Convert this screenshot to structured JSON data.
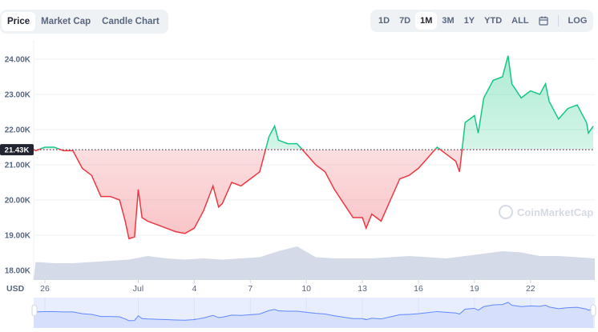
{
  "chart_tabs": [
    {
      "label": "Price",
      "active": true
    },
    {
      "label": "Market Cap",
      "active": false
    },
    {
      "label": "Candle Chart",
      "active": false
    }
  ],
  "ranges": [
    {
      "label": "1D"
    },
    {
      "label": "7D"
    },
    {
      "label": "1M",
      "active": true
    },
    {
      "label": "3M"
    },
    {
      "label": "1Y"
    },
    {
      "label": "YTD"
    },
    {
      "label": "ALL"
    }
  ],
  "calendar_icon": "calendar-icon",
  "log_label": "LOG",
  "currency_label": "USD",
  "watermark": "CoinMarketCap",
  "colors": {
    "up": "#16c784",
    "down": "#ea3943",
    "navigator_line": "#6188ff",
    "volume": "#cfd6e4"
  },
  "chart_data": {
    "type": "line",
    "baseline": {
      "value": 21.43,
      "label": "21.43K"
    },
    "ylim": [
      17.75,
      24.6
    ],
    "y_ticks": [
      {
        "v": 18,
        "label": "18.00K"
      },
      {
        "v": 19,
        "label": "19.00K"
      },
      {
        "v": 20,
        "label": "20.00K"
      },
      {
        "v": 21,
        "label": "21.00K"
      },
      {
        "v": 22,
        "label": "22.00K"
      },
      {
        "v": 23,
        "label": "23.00K"
      },
      {
        "v": 24,
        "label": "24.00K"
      }
    ],
    "x_ticks": [
      {
        "d": 0,
        "label": "26"
      },
      {
        "d": 5,
        "label": "Jul"
      },
      {
        "d": 8,
        "label": "4"
      },
      {
        "d": 11,
        "label": "7"
      },
      {
        "d": 14,
        "label": "10"
      },
      {
        "d": 17,
        "label": "13"
      },
      {
        "d": 20,
        "label": "16"
      },
      {
        "d": 23,
        "label": "19"
      },
      {
        "d": 26,
        "label": "22"
      }
    ],
    "x_unit": "days from Jun 26",
    "price_k": [
      [
        -0.6,
        21.43
      ],
      [
        -0.5,
        21.4
      ],
      [
        0,
        21.5
      ],
      [
        0.5,
        21.5
      ],
      [
        1,
        21.4
      ],
      [
        1.5,
        21.4
      ],
      [
        2,
        20.9
      ],
      [
        2.5,
        20.7
      ],
      [
        3,
        20.1
      ],
      [
        3.5,
        20.1
      ],
      [
        4,
        20.0
      ],
      [
        4.3,
        19.4
      ],
      [
        4.5,
        18.9
      ],
      [
        4.8,
        18.95
      ],
      [
        5,
        20.3
      ],
      [
        5.2,
        19.5
      ],
      [
        5.5,
        19.4
      ],
      [
        6,
        19.3
      ],
      [
        6.5,
        19.2
      ],
      [
        7,
        19.1
      ],
      [
        7.5,
        19.05
      ],
      [
        8,
        19.2
      ],
      [
        8.5,
        19.7
      ],
      [
        9,
        20.4
      ],
      [
        9.3,
        19.8
      ],
      [
        9.5,
        19.9
      ],
      [
        10,
        20.5
      ],
      [
        10.5,
        20.4
      ],
      [
        11,
        20.6
      ],
      [
        11.5,
        20.8
      ],
      [
        11.9,
        21.6
      ],
      [
        12,
        21.8
      ],
      [
        12.3,
        22.1
      ],
      [
        12.5,
        21.7
      ],
      [
        13,
        21.6
      ],
      [
        13.5,
        21.6
      ],
      [
        14,
        21.3
      ],
      [
        14.5,
        21.0
      ],
      [
        15,
        20.8
      ],
      [
        15.5,
        20.3
      ],
      [
        16,
        19.9
      ],
      [
        16.5,
        19.5
      ],
      [
        17,
        19.5
      ],
      [
        17.2,
        19.2
      ],
      [
        17.5,
        19.6
      ],
      [
        18,
        19.4
      ],
      [
        18.5,
        20.0
      ],
      [
        19,
        20.6
      ],
      [
        19.5,
        20.7
      ],
      [
        20,
        20.9
      ],
      [
        20.5,
        21.2
      ],
      [
        21,
        21.5
      ],
      [
        21.5,
        21.3
      ],
      [
        22,
        21.1
      ],
      [
        22.2,
        20.8
      ],
      [
        22.5,
        22.2
      ],
      [
        23,
        22.4
      ],
      [
        23.2,
        21.9
      ],
      [
        23.5,
        22.9
      ],
      [
        24,
        23.4
      ],
      [
        24.5,
        23.5
      ],
      [
        24.8,
        24.1
      ],
      [
        25,
        23.3
      ],
      [
        25.5,
        22.9
      ],
      [
        26,
        23.1
      ],
      [
        26.5,
        23.0
      ],
      [
        26.8,
        23.3
      ],
      [
        27,
        22.8
      ],
      [
        27.5,
        22.3
      ],
      [
        28,
        22.6
      ],
      [
        28.5,
        22.7
      ],
      [
        29,
        22.2
      ],
      [
        29.1,
        21.9
      ],
      [
        29.36,
        22.1
      ]
    ],
    "volume_relative": [
      0.35,
      0.3,
      0.3,
      0.35,
      0.4,
      0.45,
      0.6,
      0.5,
      0.45,
      0.5,
      0.45,
      0.5,
      0.55,
      0.8,
      1.0,
      0.55,
      0.5,
      0.5,
      0.5,
      0.55,
      0.6,
      0.55,
      0.5,
      0.6,
      0.7,
      0.8,
      0.75,
      0.6,
      0.6,
      0.55,
      0.5
    ]
  }
}
